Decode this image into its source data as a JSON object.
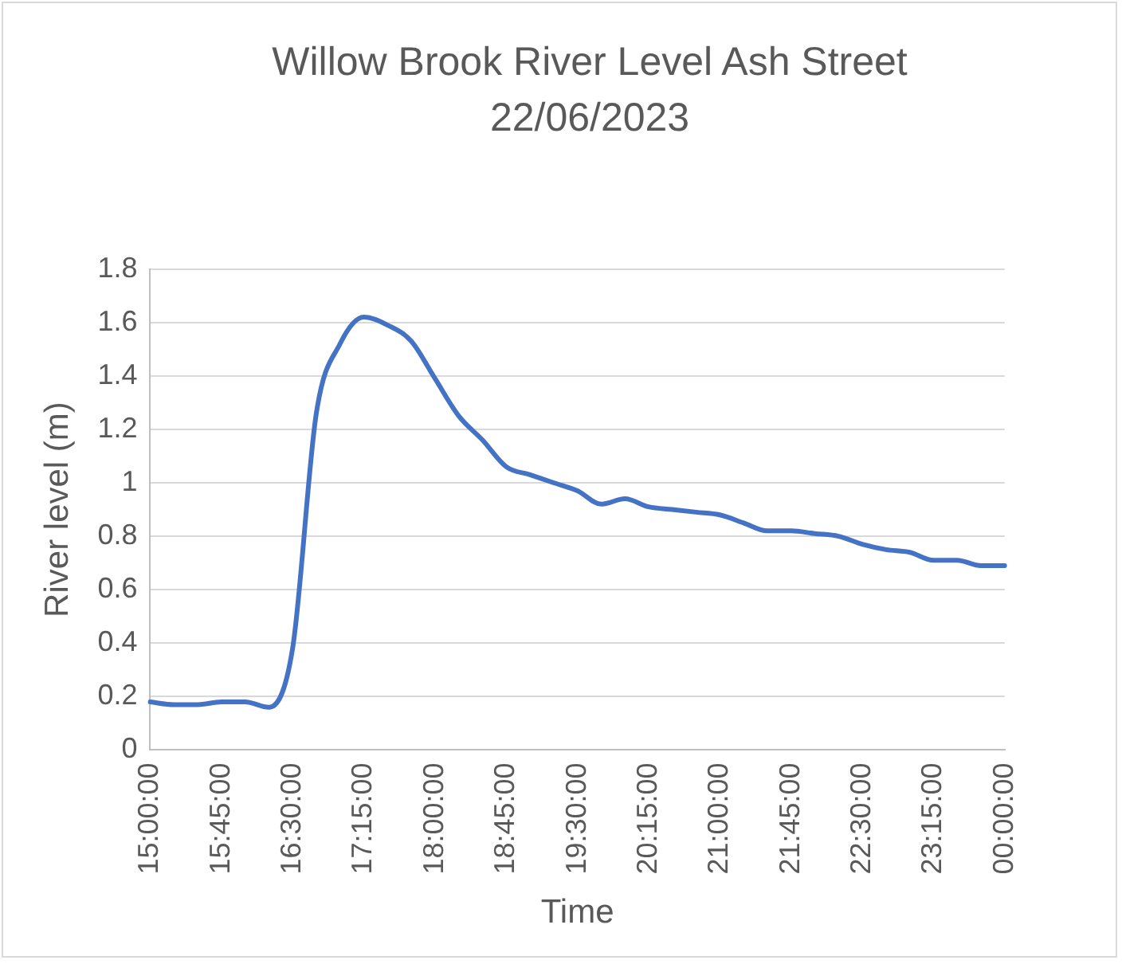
{
  "chart_data": {
    "type": "line",
    "title": "Willow Brook River Level Ash Street 22/06/2023",
    "xlabel": "Time",
    "ylabel": "River level (m)",
    "categories": [
      "15:00:00",
      null,
      null,
      "15:45:00",
      null,
      null,
      "16:30:00",
      null,
      null,
      "17:15:00",
      null,
      null,
      "18:00:00",
      null,
      null,
      "18:45:00",
      null,
      null,
      "19:30:00",
      null,
      null,
      "20:15:00",
      null,
      null,
      "21:00:00",
      null,
      null,
      "21:45:00",
      null,
      null,
      "22:30:00",
      null,
      null,
      "23:15:00",
      null,
      null,
      "00:00:00"
    ],
    "series": [
      {
        "color": "#4472c4",
        "values": [
          0.18,
          0.17,
          0.17,
          0.18,
          0.18,
          0.16,
          0.38,
          1.26,
          1.52,
          1.62,
          1.59,
          1.53,
          1.39,
          1.25,
          1.16,
          1.06,
          1.03,
          1.0,
          0.97,
          0.92,
          0.94,
          0.91,
          0.9,
          0.89,
          0.88,
          0.85,
          0.82,
          0.82,
          0.81,
          0.8,
          0.77,
          0.75,
          0.74,
          0.71,
          0.71,
          0.69,
          0.69
        ]
      }
    ],
    "ylim": [
      0,
      1.8
    ],
    "yticks": [
      0,
      0.2,
      0.4,
      0.6,
      0.8,
      1,
      1.2,
      1.4,
      1.6,
      1.8
    ],
    "grid": "y",
    "legend": false,
    "marker": "none",
    "line_style": "solid"
  }
}
